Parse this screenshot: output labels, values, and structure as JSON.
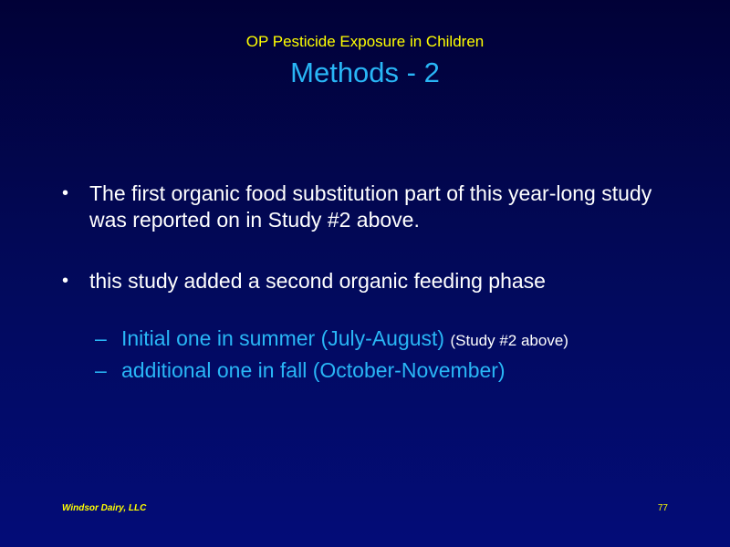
{
  "header": {
    "supertitle": "OP Pesticide Exposure in Children",
    "title": "Methods - 2"
  },
  "bullets": [
    {
      "marker": "•",
      "text": "The first organic food substitution part of this year-long study was reported on in Study #2 above."
    },
    {
      "marker": "•",
      "text": "this study added a second organic feeding phase",
      "sub_items": [
        {
          "marker": "–",
          "text": "Initial one in summer (July-August)",
          "note": "(Study #2 above)"
        },
        {
          "marker": "–",
          "text": "additional one in fall (October-November)",
          "note": ""
        }
      ]
    }
  ],
  "footer": {
    "left": "Windsor Dairy, LLC",
    "right": "77"
  },
  "colors": {
    "title": "#29b6f6",
    "supertitle": "#ffff00",
    "body_text": "#ffffff",
    "background": "#020a5e"
  }
}
